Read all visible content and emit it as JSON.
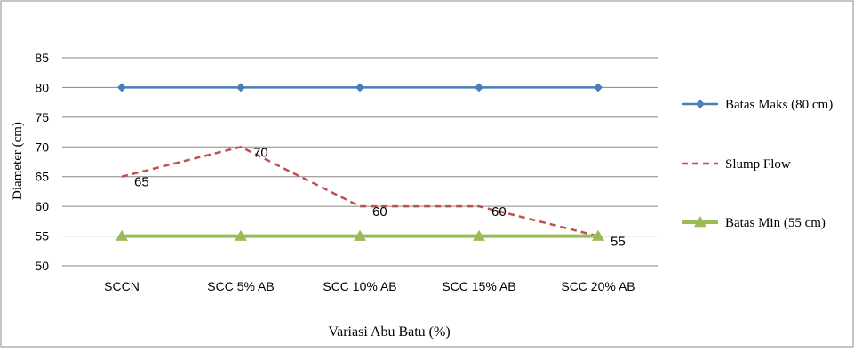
{
  "chart_data": {
    "type": "line",
    "title": "",
    "xlabel": "Variasi Abu Batu (%)",
    "ylabel": "Diameter (cm)",
    "ylim": [
      50,
      85
    ],
    "yticks": [
      50,
      55,
      60,
      65,
      70,
      75,
      80,
      85
    ],
    "grid": true,
    "legend_position": "right",
    "categories": [
      "SCCN",
      "SCC 5% AB",
      "SCC 10% AB",
      "SCC 15% AB",
      "SCC 20% AB"
    ],
    "series": [
      {
        "name": "Batas Maks (80 cm)",
        "values": [
          80,
          80,
          80,
          80,
          80
        ],
        "color": "#4a7ebb",
        "style": "solid",
        "marker": "diamond",
        "labels": false
      },
      {
        "name": "Slump Flow",
        "values": [
          65,
          70,
          60,
          60,
          55
        ],
        "color": "#c0504d",
        "style": "dashed",
        "marker": "none",
        "labels": true
      },
      {
        "name": "Batas Min (55 cm)",
        "values": [
          55,
          55,
          55,
          55,
          55
        ],
        "color": "#9bbb59",
        "style": "solid",
        "marker": "triangle",
        "labels": false
      }
    ]
  }
}
